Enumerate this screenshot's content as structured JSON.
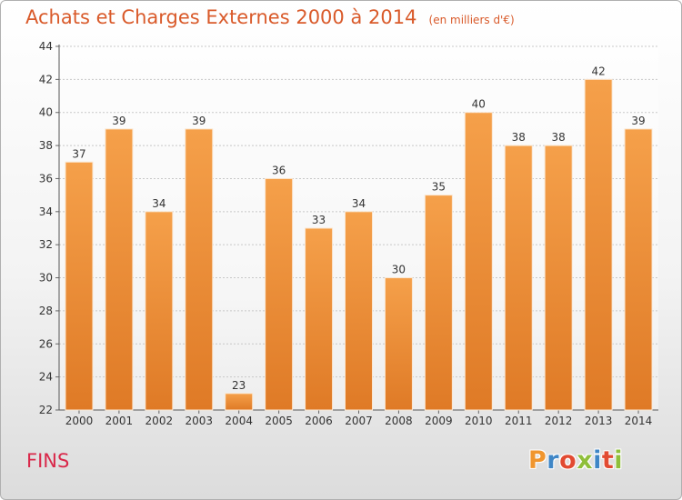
{
  "header": {
    "title": "Achats et Charges Externes 2000 à 2014",
    "subtitle": "(en milliers d'€)"
  },
  "footer": {
    "commune": "FINS",
    "logo": "Proxiti"
  },
  "colors": {
    "title": "#d95a2a",
    "commune": "#d9284a",
    "bar_light": "#f5a04a",
    "bar_dark": "#df7a26",
    "logo": [
      "#f0962f",
      "#3f86c6",
      "#e24b32",
      "#8fbf3a",
      "#3f86c6",
      "#e24b32",
      "#8fbf3a"
    ]
  },
  "chart_data": {
    "type": "bar",
    "categories": [
      "2000",
      "2001",
      "2002",
      "2003",
      "2004",
      "2005",
      "2006",
      "2007",
      "2008",
      "2009",
      "2010",
      "2011",
      "2012",
      "2013",
      "2014"
    ],
    "values": [
      37,
      39,
      34,
      39,
      23,
      36,
      33,
      34,
      30,
      35,
      40,
      38,
      38,
      42,
      39
    ],
    "ylim": [
      22,
      44
    ],
    "yticks": [
      22,
      24,
      26,
      28,
      30,
      32,
      34,
      36,
      38,
      40,
      42,
      44
    ],
    "grid": true,
    "title": "Achats et Charges Externes 2000 à 2014",
    "xlabel": "",
    "ylabel": ""
  }
}
